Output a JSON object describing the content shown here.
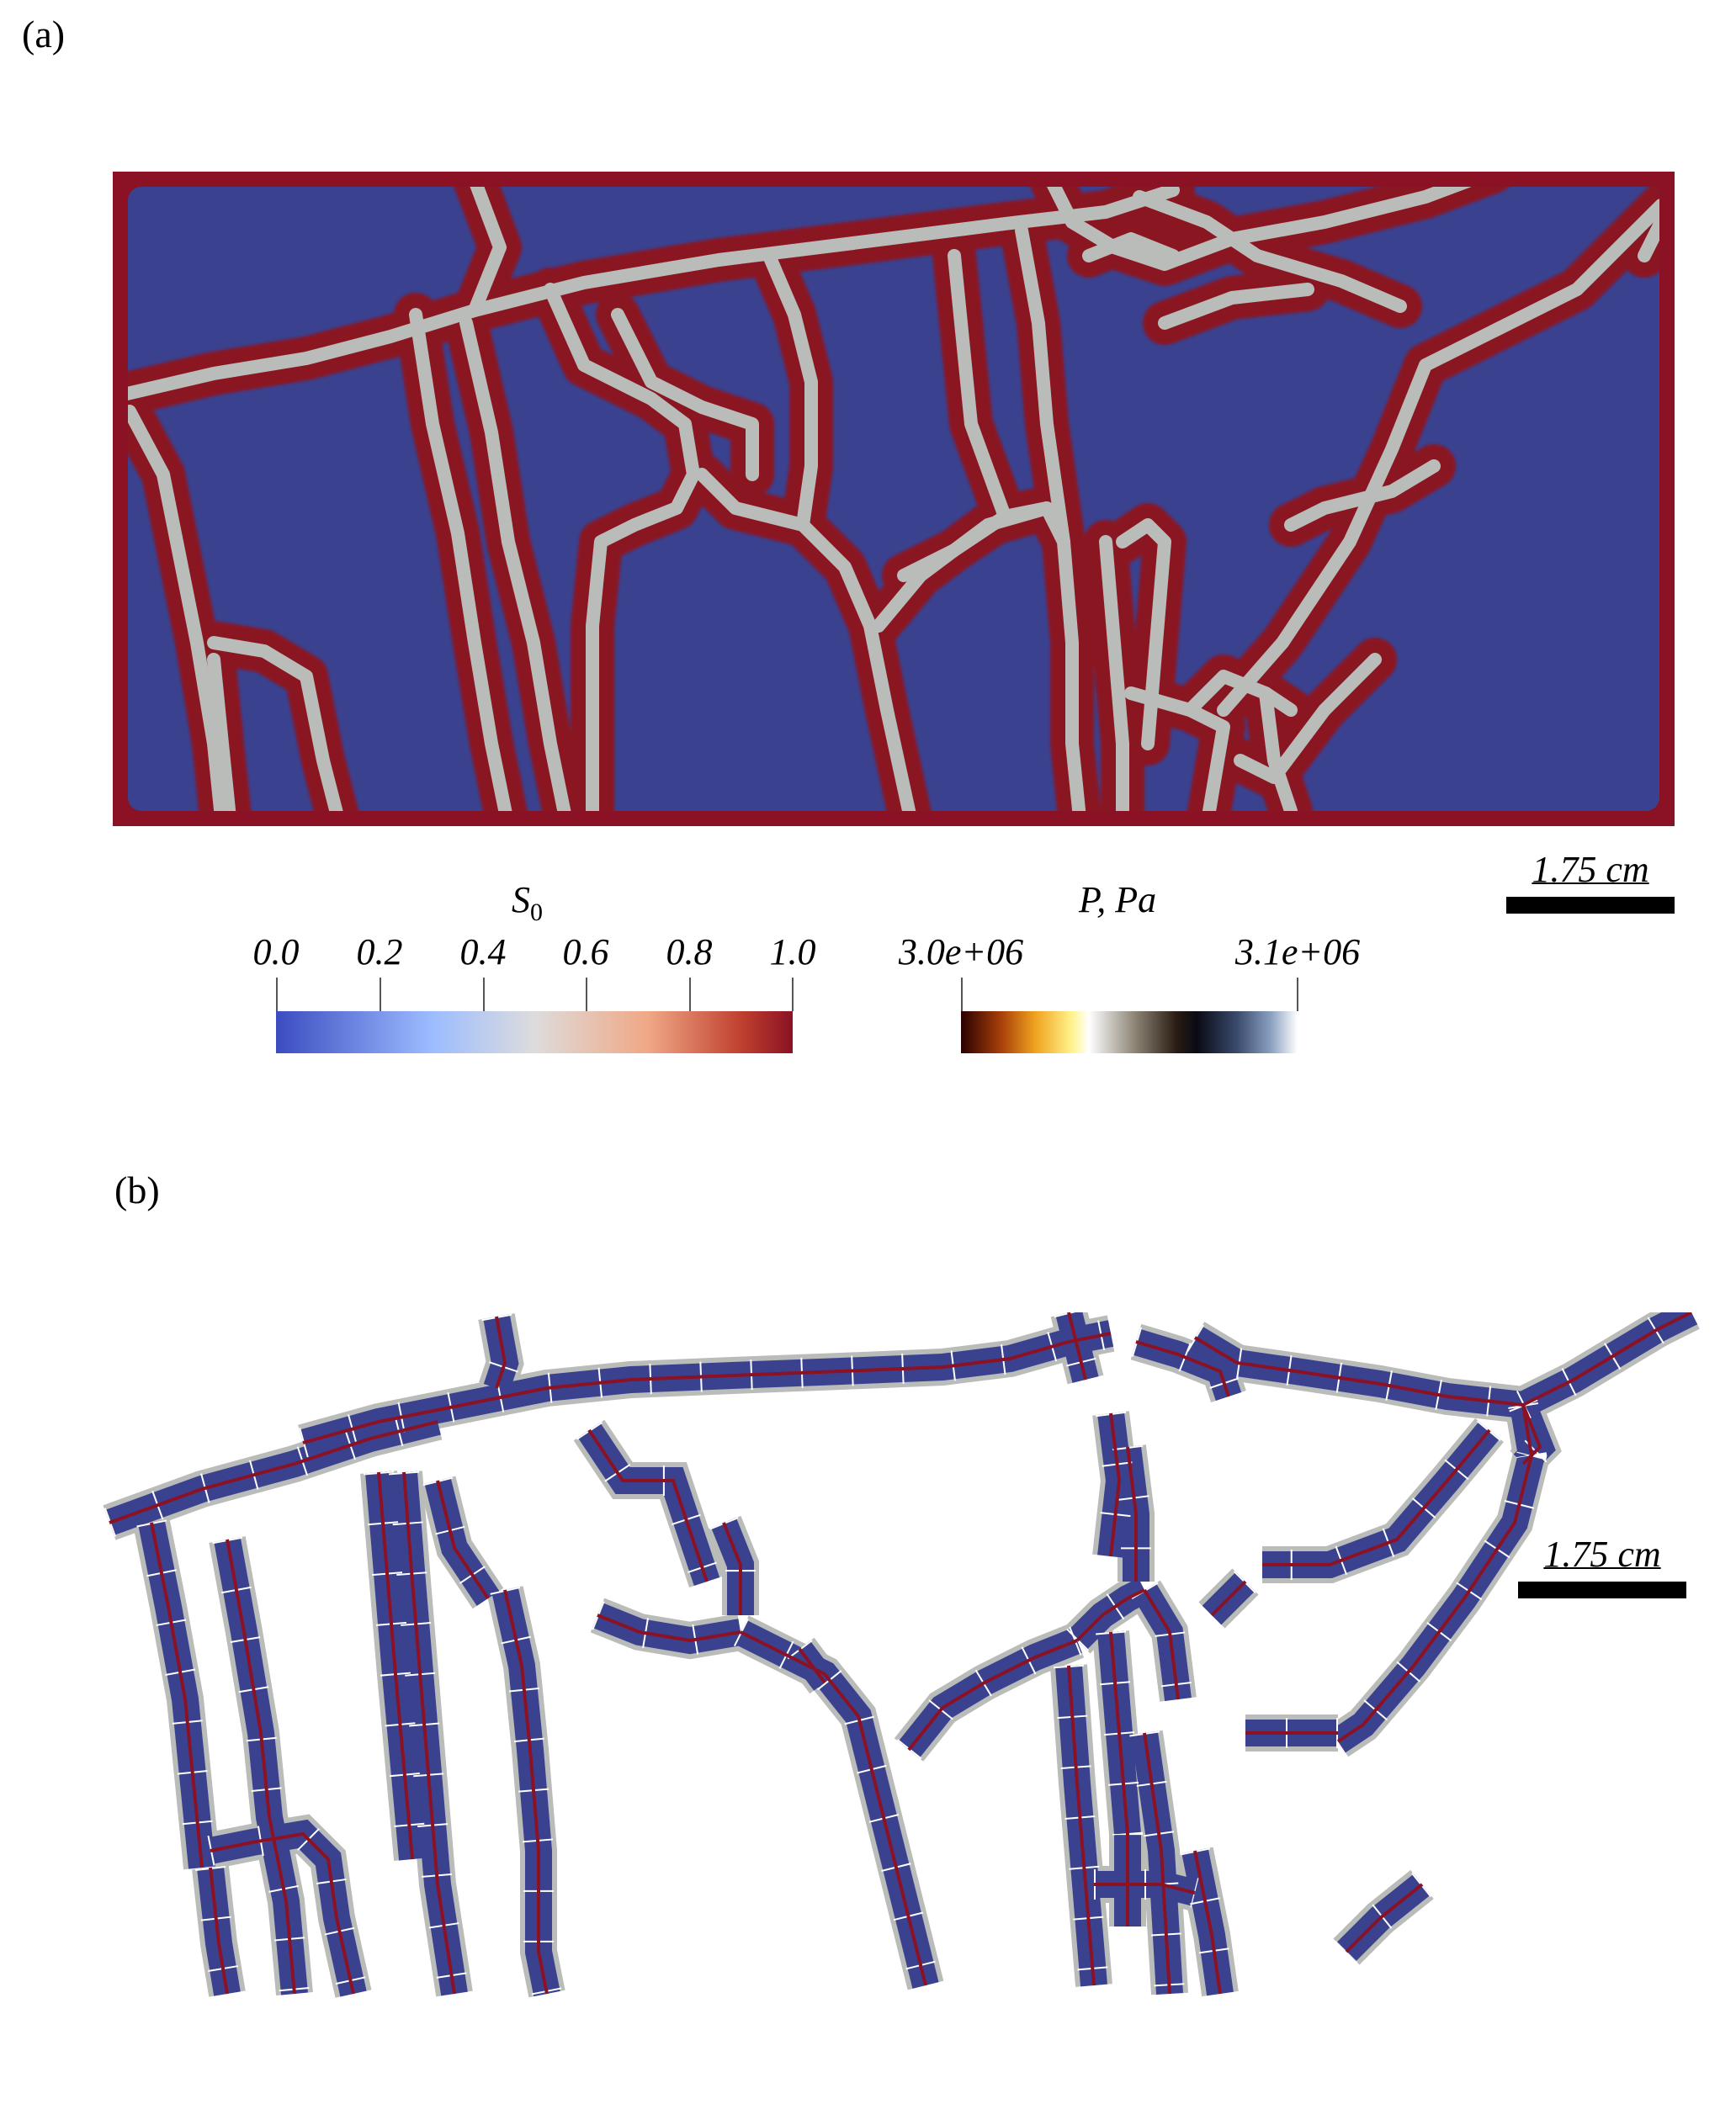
{
  "panel_a": {
    "label": "(a)",
    "scale_bar": "1.75 cm",
    "colors": {
      "background": "#3a4290",
      "fracture_core": "#b9bcb8",
      "fracture_halo": "#8a1224",
      "boundary": "#8a1224"
    }
  },
  "legend_saturation": {
    "title": "S",
    "title_sub": "0",
    "ticks": [
      "0.0",
      "0.2",
      "0.4",
      "0.6",
      "0.8",
      "1.0"
    ],
    "colormap": "cool-to-warm"
  },
  "legend_pressure": {
    "title": "P, Pa",
    "ticks": [
      "3.0e+06",
      "3.1e+06"
    ],
    "colormap": "black-body / blue-white"
  },
  "panel_b": {
    "label": "(b)",
    "scale_bar": "1.75 cm",
    "colors": {
      "cells": "#3a4290",
      "centerline": "#8a1224",
      "halo": "#b9bcb8"
    }
  }
}
